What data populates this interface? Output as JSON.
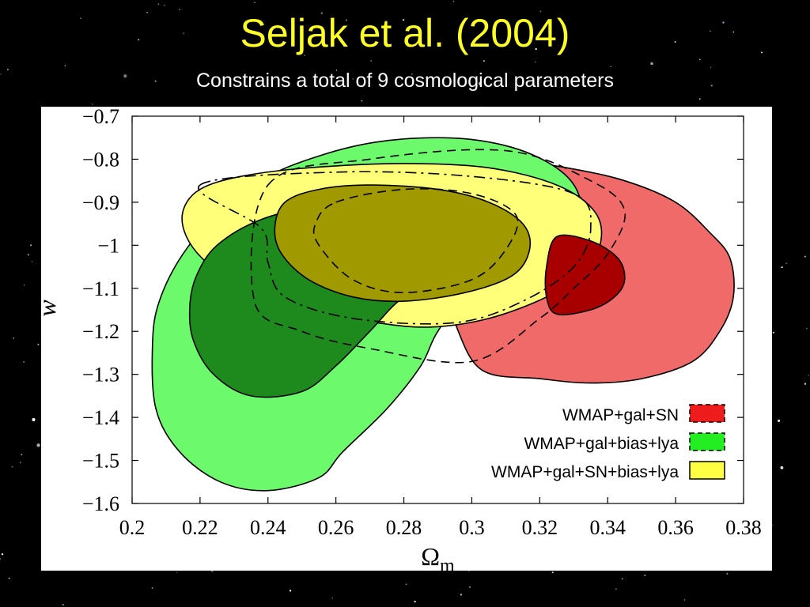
{
  "slide": {
    "title": "Seljak et al. (2004)",
    "subtitle": "Constrains a total of 9 cosmological parameters"
  },
  "chart_data": {
    "type": "contour",
    "xlabel": "Ωm",
    "ylabel": "w",
    "xlim": [
      0.2,
      0.38
    ],
    "ylim": [
      -1.6,
      -0.7
    ],
    "x_ticks": [
      "0.2",
      "0.22",
      "0.24",
      "0.26",
      "0.28",
      "0.3",
      "0.32",
      "0.34",
      "0.36",
      "0.38"
    ],
    "y_ticks": [
      "−0.7",
      "−0.8",
      "−0.9",
      "−1",
      "−1.1",
      "−1.2",
      "−1.3",
      "−1.4",
      "−1.5",
      "−1.6"
    ],
    "legend_position": "bottom-right",
    "colors": {
      "red_outer": "#f06a6a",
      "red_inner": "#a80000",
      "green_outer": "#6cfa6c",
      "green_inner": "#1e8a1e",
      "yellow_outer": "#ffff7a",
      "yellow_inner": "#a09a00"
    },
    "series": [
      {
        "name": "WMAP+gal+SN",
        "legend_fill": "#ee1c1c",
        "contours": [
          {
            "level": "outer",
            "fill": "#f06a6a",
            "points": [
              [
                0.303,
                -1.29
              ],
              [
                0.32,
                -1.31
              ],
              [
                0.335,
                -1.32
              ],
              [
                0.35,
                -1.31
              ],
              [
                0.365,
                -1.27
              ],
              [
                0.373,
                -1.2
              ],
              [
                0.377,
                -1.12
              ],
              [
                0.376,
                -1.03
              ],
              [
                0.37,
                -0.97
              ],
              [
                0.36,
                -0.9
              ],
              [
                0.345,
                -0.85
              ],
              [
                0.328,
                -0.82
              ],
              [
                0.31,
                -0.8
              ],
              [
                0.295,
                -0.79
              ],
              [
                0.285,
                -0.9
              ],
              [
                0.29,
                -1.05
              ],
              [
                0.295,
                -1.18
              ]
            ]
          },
          {
            "level": "inner",
            "fill": "#a80000",
            "points": [
              [
                0.325,
                -1.16
              ],
              [
                0.335,
                -1.15
              ],
              [
                0.342,
                -1.12
              ],
              [
                0.345,
                -1.08
              ],
              [
                0.343,
                -1.03
              ],
              [
                0.335,
                -0.99
              ],
              [
                0.325,
                -0.98
              ],
              [
                0.322,
                -1.05
              ],
              [
                0.322,
                -1.12
              ]
            ]
          }
        ]
      },
      {
        "name": "WMAP+gal+bias+lya",
        "legend_fill": "#22ee22",
        "contours": [
          {
            "level": "outer",
            "fill": "#6cfa6c",
            "points": [
              [
                0.24,
                -1.57
              ],
              [
                0.226,
                -1.55
              ],
              [
                0.214,
                -1.48
              ],
              [
                0.207,
                -1.38
              ],
              [
                0.206,
                -1.23
              ],
              [
                0.208,
                -1.13
              ],
              [
                0.215,
                -1.02
              ],
              [
                0.226,
                -0.92
              ],
              [
                0.24,
                -0.84
              ],
              [
                0.256,
                -0.79
              ],
              [
                0.272,
                -0.76
              ],
              [
                0.29,
                -0.75
              ],
              [
                0.305,
                -0.76
              ],
              [
                0.318,
                -0.79
              ],
              [
                0.328,
                -0.84
              ],
              [
                0.332,
                -0.9
              ],
              [
                0.33,
                -0.96
              ],
              [
                0.318,
                -1.02
              ],
              [
                0.3,
                -1.1
              ],
              [
                0.29,
                -1.2
              ],
              [
                0.285,
                -1.28
              ],
              [
                0.275,
                -1.38
              ],
              [
                0.262,
                -1.48
              ],
              [
                0.255,
                -1.54
              ]
            ]
          },
          {
            "level": "inner",
            "fill": "#1e8a1e",
            "points": [
              [
                0.235,
                -1.35
              ],
              [
                0.224,
                -1.3
              ],
              [
                0.218,
                -1.22
              ],
              [
                0.217,
                -1.14
              ],
              [
                0.219,
                -1.07
              ],
              [
                0.225,
                -1.0
              ],
              [
                0.238,
                -0.94
              ],
              [
                0.258,
                -0.9
              ],
              [
                0.275,
                -0.88
              ],
              [
                0.29,
                -0.89
              ],
              [
                0.302,
                -0.93
              ],
              [
                0.305,
                -0.99
              ],
              [
                0.295,
                -1.06
              ],
              [
                0.28,
                -1.12
              ],
              [
                0.27,
                -1.2
              ],
              [
                0.26,
                -1.28
              ],
              [
                0.25,
                -1.34
              ]
            ]
          }
        ]
      },
      {
        "name": "WMAP+gal+SN+bias+lya",
        "legend_fill": "#ffff44",
        "contours": [
          {
            "level": "outer",
            "fill": "#ffff7a",
            "points": [
              [
                0.272,
                -1.18
              ],
              [
                0.252,
                -1.15
              ],
              [
                0.234,
                -1.1
              ],
              [
                0.222,
                -1.04
              ],
              [
                0.216,
                -0.98
              ],
              [
                0.215,
                -0.92
              ],
              [
                0.22,
                -0.87
              ],
              [
                0.232,
                -0.84
              ],
              [
                0.252,
                -0.82
              ],
              [
                0.28,
                -0.81
              ],
              [
                0.305,
                -0.82
              ],
              [
                0.325,
                -0.86
              ],
              [
                0.336,
                -0.92
              ],
              [
                0.338,
                -0.99
              ],
              [
                0.333,
                -1.06
              ],
              [
                0.322,
                -1.12
              ],
              [
                0.305,
                -1.17
              ],
              [
                0.288,
                -1.19
              ]
            ]
          },
          {
            "level": "inner",
            "fill": "#a09a00",
            "points": [
              [
                0.265,
                -1.12
              ],
              [
                0.252,
                -1.08
              ],
              [
                0.244,
                -1.02
              ],
              [
                0.242,
                -0.96
              ],
              [
                0.245,
                -0.9
              ],
              [
                0.255,
                -0.87
              ],
              [
                0.27,
                -0.86
              ],
              [
                0.29,
                -0.87
              ],
              [
                0.305,
                -0.9
              ],
              [
                0.315,
                -0.95
              ],
              [
                0.317,
                -1.01
              ],
              [
                0.312,
                -1.07
              ],
              [
                0.298,
                -1.11
              ],
              [
                0.28,
                -1.13
              ]
            ]
          }
        ]
      }
    ],
    "dashed_overlays": [
      {
        "style": "dashed",
        "points": [
          [
            0.24,
            -0.86
          ],
          [
            0.27,
            -0.8
          ],
          [
            0.31,
            -0.78
          ],
          [
            0.335,
            -0.85
          ],
          [
            0.345,
            -0.92
          ],
          [
            0.34,
            -1.02
          ],
          [
            0.33,
            -1.1
          ],
          [
            0.32,
            -1.17
          ],
          [
            0.3,
            -1.27
          ],
          [
            0.27,
            -1.24
          ],
          [
            0.25,
            -1.2
          ],
          [
            0.236,
            -1.13
          ]
        ]
      },
      {
        "style": "dashdot",
        "points": [
          [
            0.22,
            -0.86
          ],
          [
            0.26,
            -0.83
          ],
          [
            0.3,
            -0.84
          ],
          [
            0.33,
            -0.88
          ],
          [
            0.335,
            -0.96
          ],
          [
            0.33,
            -1.05
          ],
          [
            0.315,
            -1.13
          ],
          [
            0.295,
            -1.18
          ],
          [
            0.265,
            -1.17
          ],
          [
            0.245,
            -1.12
          ],
          [
            0.24,
            -1.04
          ],
          [
            0.238,
            -0.96
          ]
        ]
      },
      {
        "style": "dashed",
        "points": [
          [
            0.26,
            -0.9
          ],
          [
            0.28,
            -0.87
          ],
          [
            0.3,
            -0.88
          ],
          [
            0.313,
            -0.93
          ],
          [
            0.31,
            -1.01
          ],
          [
            0.3,
            -1.08
          ],
          [
            0.28,
            -1.11
          ],
          [
            0.265,
            -1.08
          ],
          [
            0.255,
            -1.0
          ],
          [
            0.254,
            -0.95
          ]
        ]
      }
    ]
  }
}
